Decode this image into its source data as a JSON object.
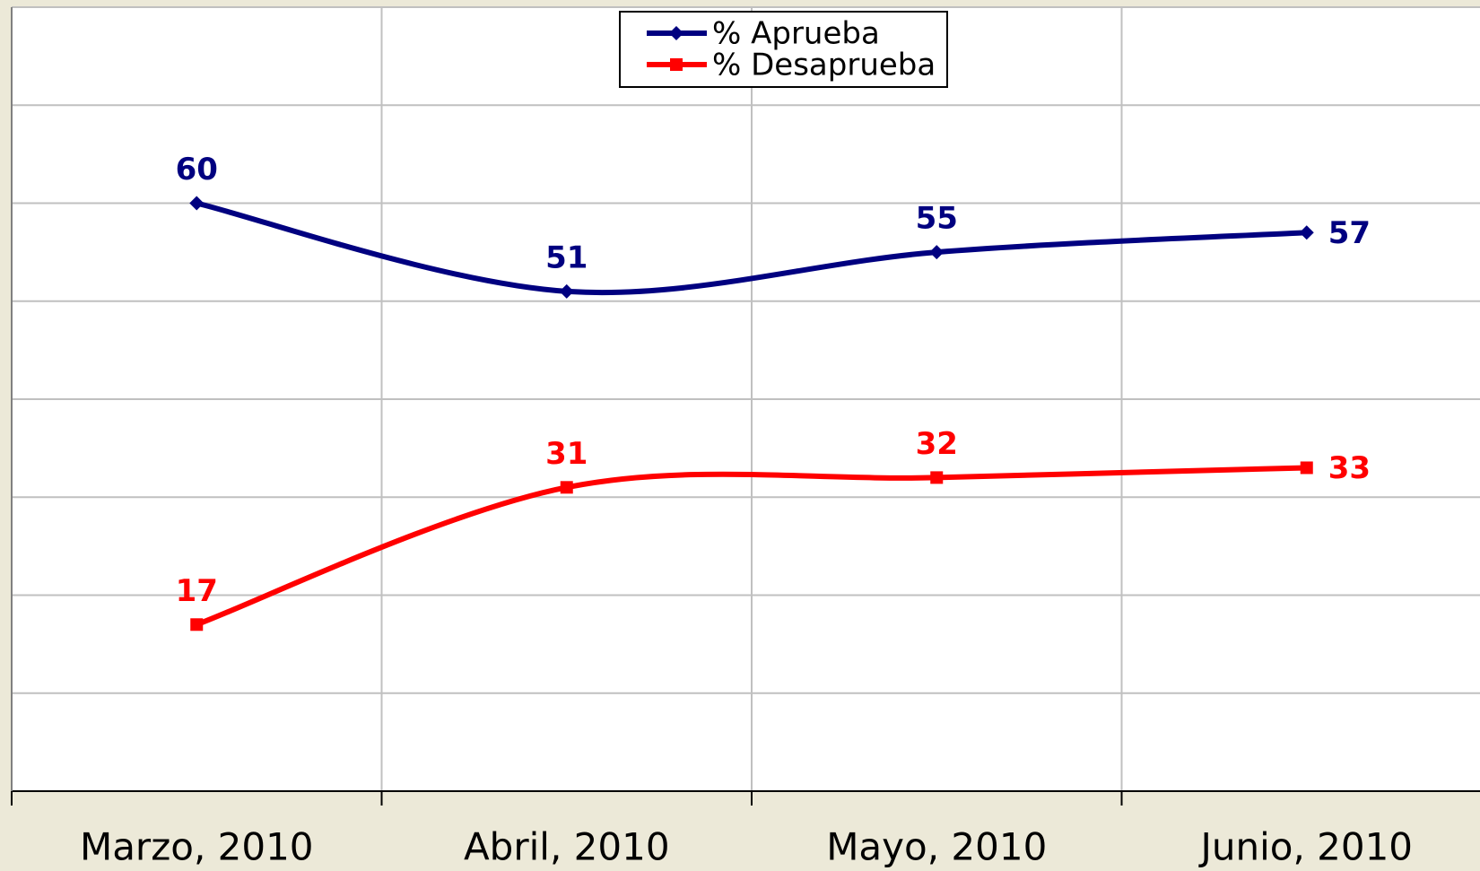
{
  "chart_data": {
    "type": "line",
    "categories": [
      "Marzo, 2010",
      "Abril, 2010",
      "Mayo, 2010",
      "Junio, 2010"
    ],
    "series": [
      {
        "name": "% Aprueba",
        "color": "#000080",
        "marker": "diamond",
        "values": [
          60,
          51,
          55,
          57
        ]
      },
      {
        "name": "% Desaprueba",
        "color": "#ff0000",
        "marker": "square",
        "values": [
          17,
          31,
          32,
          33
        ]
      }
    ],
    "ylim": [
      0,
      80
    ],
    "yticks": [
      0,
      10,
      20,
      30,
      40,
      50,
      60,
      70,
      80
    ],
    "grid": true,
    "legend": "top",
    "smooth": true
  }
}
